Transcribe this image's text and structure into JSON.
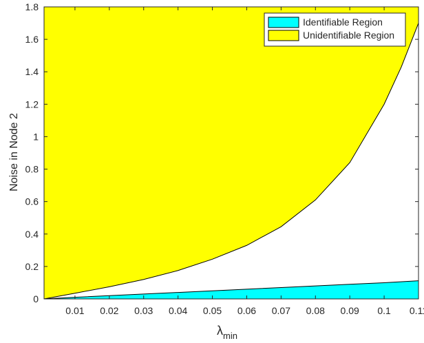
{
  "chart_data": {
    "type": "area",
    "xlabel": "λ",
    "xlabel_subscript": "min",
    "ylabel": "Noise in Node 2",
    "xlim": [
      0.001,
      0.11
    ],
    "ylim": [
      0,
      1.8
    ],
    "x_ticks": [
      "0.01",
      "0.02",
      "0.03",
      "0.04",
      "0.05",
      "0.06",
      "0.07",
      "0.08",
      "0.09",
      "0.1",
      "0.11"
    ],
    "x_tick_values": [
      0.01,
      0.02,
      0.03,
      0.04,
      0.05,
      0.06,
      0.07,
      0.08,
      0.09,
      0.1,
      0.11
    ],
    "y_ticks": [
      "0",
      "0.2",
      "0.4",
      "0.6",
      "0.8",
      "1",
      "1.2",
      "1.4",
      "1.6",
      "1.8"
    ],
    "y_tick_values": [
      0,
      0.2,
      0.4,
      0.6,
      0.8,
      1.0,
      1.2,
      1.4,
      1.6,
      1.8
    ],
    "legend_position": "top-right",
    "grid": false,
    "series": [
      {
        "name": "Identifiable Region",
        "color": "#00FFFF",
        "kind": "band_from_zero",
        "x": [
          0.001,
          0.01,
          0.02,
          0.03,
          0.04,
          0.05,
          0.06,
          0.07,
          0.08,
          0.09,
          0.1,
          0.11
        ],
        "upper": [
          0.0,
          0.01,
          0.02,
          0.03,
          0.04,
          0.05,
          0.06,
          0.07,
          0.08,
          0.09,
          0.1,
          0.112
        ]
      },
      {
        "name": "Unidentifiable Region",
        "color": "#FFFF00",
        "kind": "band_to_top",
        "x": [
          0.001,
          0.01,
          0.02,
          0.03,
          0.04,
          0.05,
          0.06,
          0.07,
          0.08,
          0.09,
          0.1,
          0.105,
          0.11
        ],
        "lower": [
          0.0,
          0.035,
          0.075,
          0.12,
          0.175,
          0.245,
          0.33,
          0.445,
          0.61,
          0.84,
          1.2,
          1.43,
          1.7
        ]
      }
    ]
  }
}
